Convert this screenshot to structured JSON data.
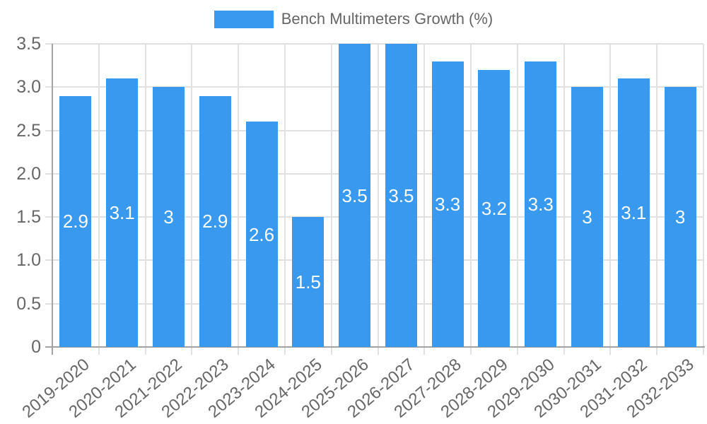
{
  "legend": {
    "label": "Bench Multimeters Growth (%)"
  },
  "colors": {
    "bar": "#3899EE",
    "grid": "#E1E1E1",
    "axis": "#A3A3A3",
    "tick_text": "#676767",
    "bar_label_text": "#FFFFFF"
  },
  "chart_data": {
    "type": "bar",
    "title": "Bench Multimeters Growth (%)",
    "categories": [
      "2019-2020",
      "2020-2021",
      "2021-2022",
      "2022-2023",
      "2023-2024",
      "2024-2025",
      "2025-2026",
      "2026-2027",
      "2027-2028",
      "2028-2029",
      "2029-2030",
      "2030-2031",
      "2031-2032",
      "2032-2033"
    ],
    "values": [
      2.9,
      3.1,
      3,
      2.9,
      2.6,
      1.5,
      3.5,
      3.5,
      3.3,
      3.2,
      3.3,
      3,
      3.1,
      3
    ],
    "value_labels": [
      "2.9",
      "3.1",
      "3",
      "2.9",
      "2.6",
      "1.5",
      "3.5",
      "3.5",
      "3.3",
      "3.2",
      "3.3",
      "3",
      "3.1",
      "3"
    ],
    "xlabel": "",
    "ylabel": "",
    "ylim": [
      0,
      3.5
    ],
    "ytick_values": [
      3.5,
      3.0,
      2.5,
      2.0,
      1.5,
      1.0,
      0.5,
      0
    ],
    "ytick_labels": [
      "3.5",
      "3.0",
      "2.5",
      "2.0",
      "1.5",
      "1.0",
      "0.5",
      "0"
    ],
    "grid": true,
    "legend_position": "top",
    "value_label_position": "center-of-bar"
  }
}
